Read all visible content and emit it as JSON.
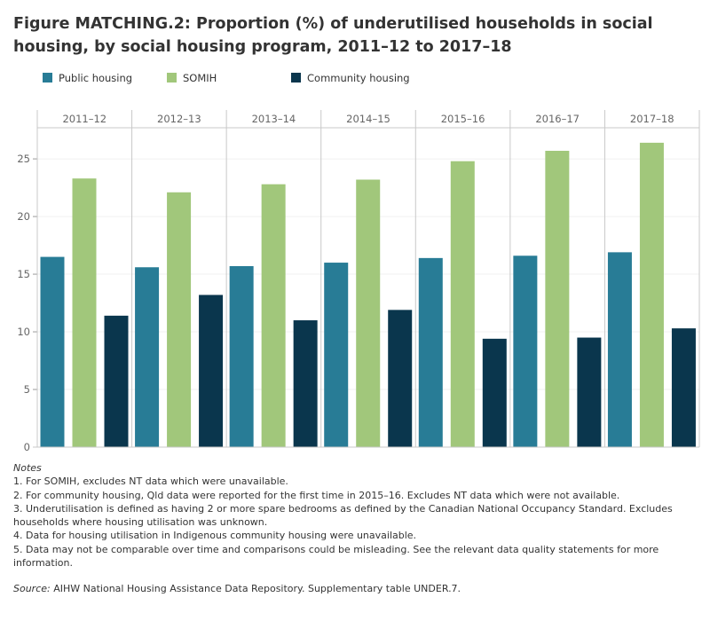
{
  "title": "Figure MATCHING.2: Proportion (%) of underutilised households in social housing, by social housing program, 2011–12 to 2017–18",
  "chart_data": {
    "type": "bar",
    "categories": [
      "2011–12",
      "2012–13",
      "2013–14",
      "2014–15",
      "2015–16",
      "2016–17",
      "2017–18"
    ],
    "series": [
      {
        "name": "Public housing",
        "color": "#287c96",
        "values": [
          16.5,
          15.6,
          15.7,
          16.0,
          16.4,
          16.6,
          16.9
        ]
      },
      {
        "name": "SOMIH",
        "color": "#a1c77b",
        "values": [
          23.3,
          22.1,
          22.8,
          23.2,
          24.8,
          25.7,
          26.4
        ]
      },
      {
        "name": "Community housing",
        "color": "#0a364d",
        "values": [
          11.4,
          13.2,
          11.0,
          11.9,
          9.4,
          9.5,
          10.3
        ]
      }
    ],
    "yticks": [
      0,
      5,
      10,
      15,
      20,
      25
    ],
    "ylim": [
      0,
      27.7
    ],
    "grid": true,
    "legend_position": "top-left"
  },
  "notes": {
    "heading": "Notes",
    "items": [
      "1. For SOMIH, excludes NT data which were unavailable.",
      "2. For community housing, Qld data were reported for the first time in 2015–16. Excludes NT data which were not available.",
      "3. Underutilisation is defined as having 2 or more spare bedrooms as defined by the Canadian National Occupancy Standard. Excludes households where housing utilisation was unknown.",
      "4. Data for housing utilisation in Indigenous community housing were unavailable.",
      "5. Data may not be comparable over time and comparisons could be misleading. See the relevant data quality statements for more information."
    ],
    "source_label": "Source:",
    "source_text": " AIHW National Housing Assistance Data Repository. Supplementary table UNDER.7."
  }
}
